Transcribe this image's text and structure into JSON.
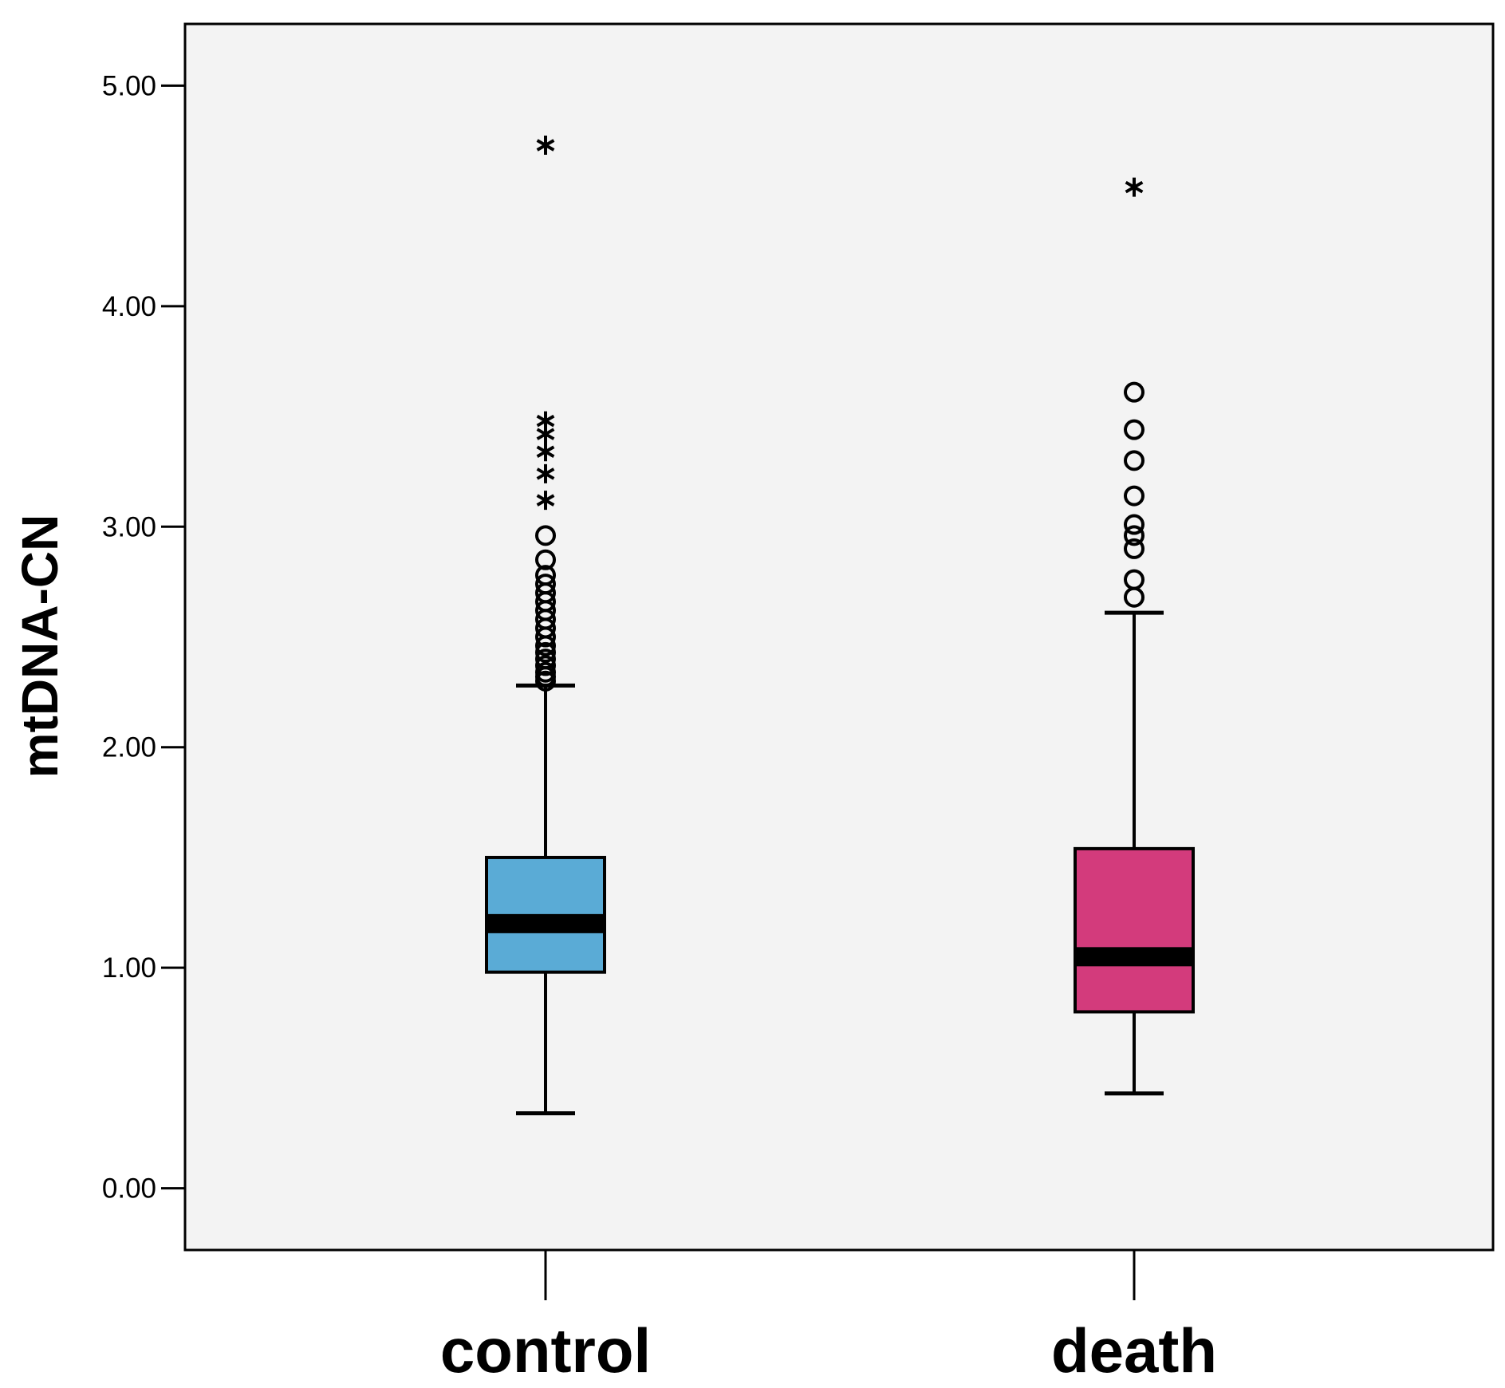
{
  "chart_data": {
    "type": "boxplot",
    "title": "",
    "xlabel": "",
    "ylabel": "mtDNA-CN",
    "ylim": [
      -0.28,
      5.28
    ],
    "yticks": [
      0,
      1,
      2,
      3,
      4,
      5
    ],
    "ytick_labels": [
      "0.00",
      "1.00",
      "2.00",
      "3.00",
      "4.00",
      "5.00"
    ],
    "grid": false,
    "legend": "none",
    "colors": {
      "plot_background": "#f3f3f3",
      "control": "#5aabd6",
      "death": "#d33b7c",
      "stroke": "#000000"
    },
    "categories": [
      "control",
      "death"
    ],
    "series": [
      {
        "name": "control",
        "color": "#5aabd6",
        "whisker_low": 0.34,
        "q1": 0.98,
        "median": 1.2,
        "q3": 1.5,
        "whisker_high": 2.28,
        "outliers_circle": [
          2.3,
          2.32,
          2.34,
          2.37,
          2.4,
          2.43,
          2.46,
          2.5,
          2.54,
          2.58,
          2.62,
          2.66,
          2.7,
          2.74,
          2.78,
          2.85,
          2.96
        ],
        "outliers_star": [
          3.12,
          3.24,
          3.34,
          3.42,
          3.48,
          4.73
        ]
      },
      {
        "name": "death",
        "color": "#d33b7c",
        "whisker_low": 0.43,
        "q1": 0.8,
        "median": 1.05,
        "q3": 1.54,
        "whisker_high": 2.61,
        "outliers_circle": [
          2.68,
          2.76,
          2.9,
          2.96,
          3.01,
          3.14,
          3.3,
          3.44,
          3.61
        ],
        "outliers_star": [
          4.54
        ]
      }
    ]
  }
}
